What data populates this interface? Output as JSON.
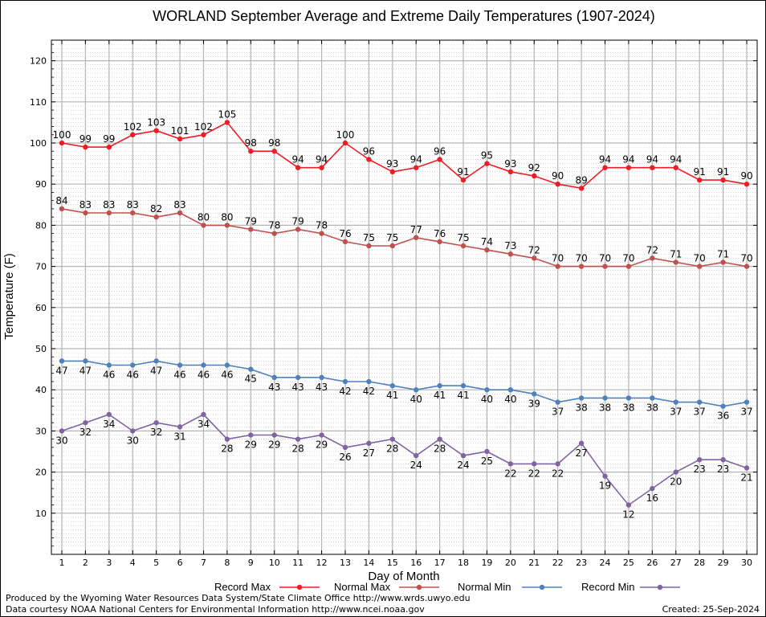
{
  "chart_data": {
    "type": "line",
    "title": "WORLAND September Average and Extreme Daily Temperatures (1907-2024)",
    "xlabel": "Day of Month",
    "ylabel": "Temperature (F)",
    "x": [
      1,
      2,
      3,
      4,
      5,
      6,
      7,
      8,
      9,
      10,
      11,
      12,
      13,
      14,
      15,
      16,
      17,
      18,
      19,
      20,
      21,
      22,
      23,
      24,
      25,
      26,
      27,
      28,
      29,
      30
    ],
    "xlim": [
      1,
      30
    ],
    "ylim": [
      0,
      125
    ],
    "yticks": [
      10,
      20,
      30,
      40,
      50,
      60,
      70,
      80,
      90,
      100,
      110,
      120
    ],
    "grid": true,
    "legend_position": "bottom",
    "series": [
      {
        "name": "Record Max",
        "color": "#ee1c25",
        "label_position": "above",
        "values": [
          100,
          99,
          99,
          102,
          103,
          101,
          102,
          105,
          98,
          98,
          94,
          94,
          100,
          96,
          93,
          94,
          96,
          91,
          95,
          93,
          92,
          90,
          89,
          94,
          94,
          94,
          94,
          91,
          91,
          90
        ]
      },
      {
        "name": "Normal Max",
        "color": "#c0504d",
        "label_position": "above",
        "values": [
          84,
          83,
          83,
          83,
          82,
          83,
          80,
          80,
          79,
          78,
          79,
          78,
          76,
          75,
          75,
          77,
          76,
          75,
          74,
          73,
          72,
          70,
          70,
          70,
          70,
          72,
          71,
          70,
          71,
          70
        ]
      },
      {
        "name": "Normal Min",
        "color": "#4f81bd",
        "label_position": "below",
        "values": [
          47,
          47,
          46,
          46,
          47,
          46,
          46,
          46,
          45,
          43,
          43,
          43,
          42,
          42,
          41,
          40,
          41,
          41,
          40,
          40,
          39,
          37,
          38,
          38,
          38,
          38,
          37,
          37,
          36,
          37
        ]
      },
      {
        "name": "Record Min",
        "color": "#8064a2",
        "label_position": "below",
        "values": [
          30,
          32,
          34,
          30,
          32,
          31,
          34,
          28,
          29,
          29,
          28,
          29,
          26,
          27,
          28,
          24,
          28,
          24,
          25,
          22,
          22,
          22,
          27,
          19,
          12,
          16,
          20,
          23,
          23,
          21
        ]
      }
    ]
  },
  "footer": {
    "produced_by": "Produced by the Wyoming Water Resources Data System/State Climate Office http://www.wrds.uwyo.edu",
    "data_courtesy": "Data courtesy NOAA National Centers for Environmental Information http://www.ncei.noaa.gov",
    "created": "Created: 25-Sep-2024"
  }
}
